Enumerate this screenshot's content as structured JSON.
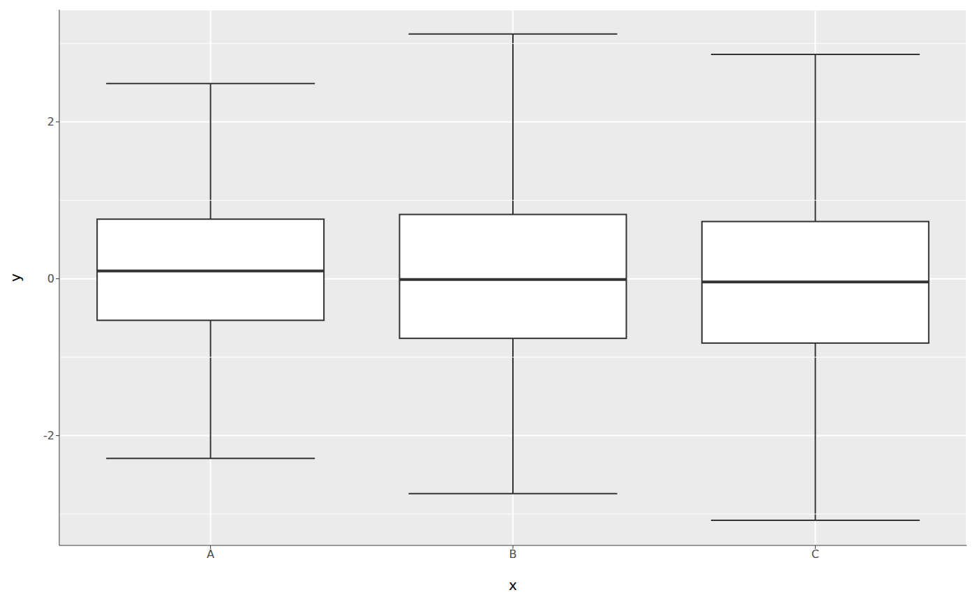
{
  "chart_data": {
    "type": "box",
    "x_label": "x",
    "y_label": "y",
    "categories": [
      "A",
      "B",
      "C"
    ],
    "whisker_low": [
      -2.29,
      -2.74,
      -3.08
    ],
    "q1": [
      -0.53,
      -0.76,
      -0.82
    ],
    "median": [
      0.1,
      -0.01,
      -0.04
    ],
    "q3": [
      0.76,
      0.82,
      0.73
    ],
    "whisker_high": [
      2.49,
      3.12,
      2.86
    ],
    "color": "#ffffff",
    "ylim": [
      -3.4,
      3.43
    ],
    "yticks": [
      -2,
      0,
      2
    ],
    "grid": true
  }
}
